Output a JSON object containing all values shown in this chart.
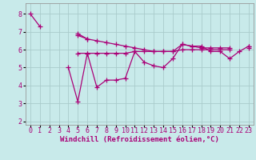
{
  "background_color": "#c8eaea",
  "grid_color": "#aacccc",
  "line_color": "#aa0077",
  "marker": "+",
  "markersize": 4,
  "linewidth": 0.9,
  "xlabel": "Windchill (Refroidissement éolien,°C)",
  "xlabel_fontsize": 6.5,
  "tick_fontsize": 6,
  "xlim": [
    -0.5,
    23.5
  ],
  "ylim": [
    1.8,
    8.6
  ],
  "yticks": [
    2,
    3,
    4,
    5,
    6,
    7,
    8
  ],
  "xticks": [
    0,
    1,
    2,
    3,
    4,
    5,
    6,
    7,
    8,
    9,
    10,
    11,
    12,
    13,
    14,
    15,
    16,
    17,
    18,
    19,
    20,
    21,
    22,
    23
  ],
  "series": [
    [
      8.0,
      7.3,
      null,
      null,
      null,
      6.8,
      6.6,
      6.5,
      6.4,
      6.3,
      6.2,
      6.1,
      6.0,
      5.9,
      5.9,
      5.9,
      6.3,
      6.2,
      6.1,
      6.1,
      6.1,
      6.1,
      null,
      6.2
    ],
    [
      null,
      null,
      null,
      null,
      null,
      5.8,
      5.8,
      5.8,
      5.8,
      5.8,
      5.8,
      5.9,
      5.9,
      5.9,
      5.9,
      5.9,
      6.0,
      6.0,
      6.0,
      6.0,
      6.0,
      6.0,
      null,
      6.1
    ],
    [
      null,
      null,
      null,
      null,
      null,
      6.9,
      6.6,
      null,
      null,
      null,
      null,
      null,
      null,
      null,
      null,
      null,
      null,
      null,
      null,
      null,
      null,
      null,
      null,
      null
    ],
    [
      null,
      null,
      null,
      null,
      5.0,
      3.1,
      5.8,
      3.9,
      4.3,
      4.3,
      4.4,
      5.9,
      5.3,
      5.1,
      5.0,
      5.5,
      6.3,
      6.2,
      6.2,
      5.9,
      5.9,
      5.5,
      5.9,
      6.2
    ]
  ]
}
